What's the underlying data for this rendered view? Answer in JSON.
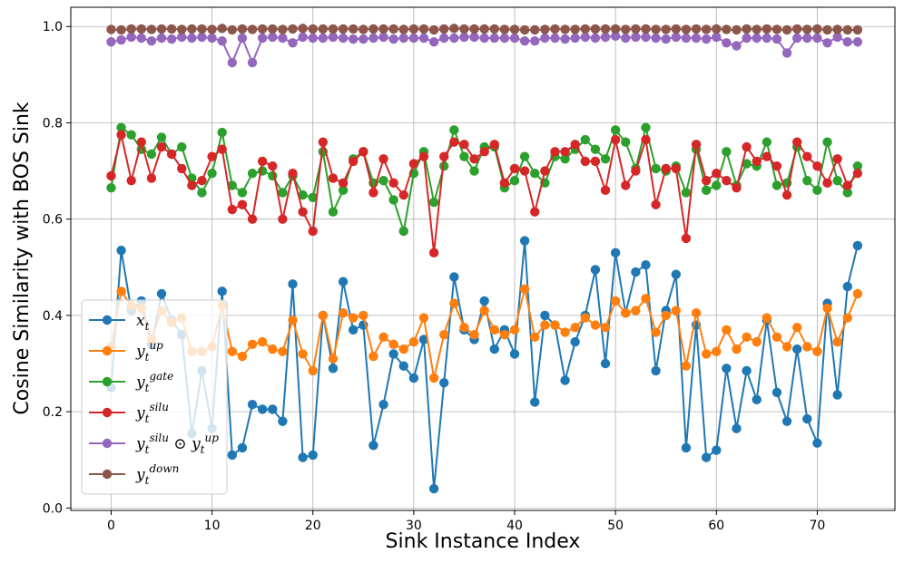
{
  "chart_data": {
    "type": "line",
    "title": "",
    "xlabel": "Sink Instance Index",
    "ylabel": "Cosine Similarity with BOS Sink",
    "xlim": [
      -4,
      77.7
    ],
    "ylim": [
      -0.005,
      1.04
    ],
    "grid": true,
    "legend_position": "lower-left",
    "x_ticks": [
      0,
      10,
      20,
      30,
      40,
      50,
      60,
      70
    ],
    "x_tick_labels": [
      "0",
      "10",
      "20",
      "30",
      "40",
      "50",
      "60",
      "70"
    ],
    "y_ticks": [
      0.0,
      0.2,
      0.4,
      0.6,
      0.8,
      1.0
    ],
    "y_tick_labels": [
      "0.0",
      "0.2",
      "0.4",
      "0.6",
      "0.8",
      "1.0"
    ],
    "x_start": 0,
    "series": [
      {
        "name": "x_t",
        "legend": [
          {
            "t": "x"
          },
          {
            "t": "t",
            "sub": true
          }
        ],
        "color": "#1f77b4",
        "values": [
          0.25,
          0.535,
          0.41,
          0.43,
          0.34,
          0.445,
          0.39,
          0.36,
          0.155,
          0.285,
          0.165,
          0.45,
          0.11,
          0.125,
          0.215,
          0.205,
          0.205,
          0.18,
          0.465,
          0.105,
          0.11,
          0.4,
          0.29,
          0.47,
          0.37,
          0.38,
          0.13,
          0.215,
          0.32,
          0.295,
          0.27,
          0.35,
          0.04,
          0.26,
          0.48,
          0.37,
          0.35,
          0.43,
          0.33,
          0.37,
          0.32,
          0.555,
          0.22,
          0.4,
          0.38,
          0.265,
          0.345,
          0.4,
          0.495,
          0.3,
          0.53,
          0.405,
          0.49,
          0.505,
          0.285,
          0.41,
          0.485,
          0.125,
          0.38,
          0.105,
          0.12,
          0.29,
          0.165,
          0.285,
          0.225,
          0.39,
          0.24,
          0.18,
          0.33,
          0.185,
          0.135,
          0.425,
          0.235,
          0.46,
          0.545
        ]
      },
      {
        "name": "y_t^up",
        "legend": [
          {
            "t": "y"
          },
          {
            "t": "t",
            "sub": true
          },
          {
            "t": "up",
            "sup": true
          }
        ],
        "color": "#ff7f0e",
        "values": [
          0.335,
          0.45,
          0.42,
          0.415,
          0.35,
          0.41,
          0.385,
          0.395,
          0.325,
          0.325,
          0.335,
          0.42,
          0.325,
          0.315,
          0.34,
          0.345,
          0.33,
          0.325,
          0.39,
          0.32,
          0.285,
          0.4,
          0.31,
          0.405,
          0.395,
          0.4,
          0.315,
          0.355,
          0.34,
          0.33,
          0.345,
          0.395,
          0.27,
          0.36,
          0.425,
          0.375,
          0.36,
          0.41,
          0.37,
          0.36,
          0.37,
          0.455,
          0.355,
          0.38,
          0.38,
          0.365,
          0.375,
          0.395,
          0.38,
          0.375,
          0.43,
          0.405,
          0.41,
          0.435,
          0.365,
          0.4,
          0.41,
          0.295,
          0.405,
          0.32,
          0.325,
          0.37,
          0.33,
          0.355,
          0.345,
          0.395,
          0.355,
          0.335,
          0.375,
          0.335,
          0.325,
          0.415,
          0.345,
          0.395,
          0.445
        ]
      },
      {
        "name": "y_t^gate",
        "legend": [
          {
            "t": "y"
          },
          {
            "t": "t",
            "sub": true
          },
          {
            "t": "gate",
            "sup": true
          }
        ],
        "color": "#2ca02c",
        "values": [
          0.665,
          0.79,
          0.775,
          0.745,
          0.735,
          0.77,
          0.735,
          0.75,
          0.685,
          0.655,
          0.695,
          0.78,
          0.67,
          0.655,
          0.695,
          0.7,
          0.69,
          0.655,
          0.69,
          0.65,
          0.645,
          0.74,
          0.615,
          0.66,
          0.725,
          0.74,
          0.675,
          0.68,
          0.64,
          0.575,
          0.695,
          0.74,
          0.635,
          0.71,
          0.785,
          0.73,
          0.7,
          0.75,
          0.75,
          0.665,
          0.68,
          0.73,
          0.695,
          0.675,
          0.73,
          0.725,
          0.745,
          0.765,
          0.745,
          0.725,
          0.785,
          0.76,
          0.705,
          0.79,
          0.705,
          0.7,
          0.71,
          0.655,
          0.745,
          0.66,
          0.67,
          0.74,
          0.67,
          0.715,
          0.71,
          0.76,
          0.67,
          0.675,
          0.75,
          0.68,
          0.66,
          0.76,
          0.68,
          0.655,
          0.71
        ]
      },
      {
        "name": "y_t^silu",
        "legend": [
          {
            "t": "y"
          },
          {
            "t": "t",
            "sub": true
          },
          {
            "t": "silu",
            "sup": true
          }
        ],
        "color": "#d62728",
        "values": [
          0.69,
          0.775,
          0.68,
          0.76,
          0.685,
          0.75,
          0.735,
          0.705,
          0.67,
          0.68,
          0.73,
          0.745,
          0.62,
          0.63,
          0.6,
          0.72,
          0.71,
          0.6,
          0.695,
          0.615,
          0.575,
          0.76,
          0.685,
          0.675,
          0.72,
          0.74,
          0.655,
          0.725,
          0.675,
          0.65,
          0.715,
          0.73,
          0.53,
          0.73,
          0.76,
          0.755,
          0.725,
          0.74,
          0.755,
          0.675,
          0.705,
          0.7,
          0.615,
          0.7,
          0.74,
          0.74,
          0.755,
          0.72,
          0.72,
          0.66,
          0.765,
          0.67,
          0.7,
          0.765,
          0.63,
          0.705,
          0.705,
          0.56,
          0.755,
          0.68,
          0.695,
          0.68,
          0.665,
          0.75,
          0.72,
          0.73,
          0.71,
          0.65,
          0.76,
          0.73,
          0.71,
          0.675,
          0.725,
          0.67,
          0.695
        ]
      },
      {
        "name": "y_t^silu ⊙ y_t^up",
        "legend": [
          {
            "t": "y"
          },
          {
            "t": "t",
            "sub": true
          },
          {
            "t": "silu",
            "sup": true
          },
          {
            "t": " ⊙ "
          },
          {
            "t": "y"
          },
          {
            "t": "t",
            "sub": true
          },
          {
            "t": "up",
            "sup": true
          }
        ],
        "color": "#9467bd",
        "values": [
          0.968,
          0.972,
          0.978,
          0.976,
          0.97,
          0.976,
          0.974,
          0.978,
          0.976,
          0.978,
          0.976,
          0.97,
          0.925,
          0.976,
          0.925,
          0.976,
          0.978,
          0.976,
          0.966,
          0.978,
          0.976,
          0.976,
          0.978,
          0.976,
          0.974,
          0.974,
          0.976,
          0.978,
          0.974,
          0.976,
          0.976,
          0.976,
          0.968,
          0.976,
          0.976,
          0.978,
          0.978,
          0.976,
          0.976,
          0.976,
          0.976,
          0.97,
          0.97,
          0.976,
          0.976,
          0.974,
          0.976,
          0.978,
          0.976,
          0.978,
          0.98,
          0.976,
          0.978,
          0.978,
          0.976,
          0.974,
          0.978,
          0.976,
          0.976,
          0.974,
          0.978,
          0.966,
          0.96,
          0.976,
          0.976,
          0.976,
          0.974,
          0.945,
          0.976,
          0.976,
          0.976,
          0.966,
          0.978,
          0.968,
          0.968
        ]
      },
      {
        "name": "y_t^down",
        "legend": [
          {
            "t": "y"
          },
          {
            "t": "t",
            "sub": true
          },
          {
            "t": "down",
            "sup": true
          }
        ],
        "color": "#8c564b",
        "values": [
          0.994,
          0.993,
          0.995,
          0.995,
          0.994,
          0.995,
          0.995,
          0.994,
          0.995,
          0.995,
          0.994,
          0.996,
          0.993,
          0.995,
          0.994,
          0.995,
          0.995,
          0.994,
          0.995,
          0.996,
          0.995,
          0.995,
          0.995,
          0.995,
          0.995,
          0.994,
          0.995,
          0.995,
          0.995,
          0.994,
          0.995,
          0.995,
          0.993,
          0.995,
          0.996,
          0.995,
          0.995,
          0.995,
          0.995,
          0.994,
          0.994,
          0.993,
          0.993,
          0.994,
          0.995,
          0.994,
          0.994,
          0.995,
          0.995,
          0.995,
          0.995,
          0.994,
          0.995,
          0.995,
          0.994,
          0.994,
          0.995,
          0.994,
          0.995,
          0.994,
          0.995,
          0.994,
          0.993,
          0.995,
          0.994,
          0.995,
          0.994,
          0.993,
          0.995,
          0.994,
          0.995,
          0.993,
          0.994,
          0.993,
          0.993
        ]
      }
    ]
  }
}
